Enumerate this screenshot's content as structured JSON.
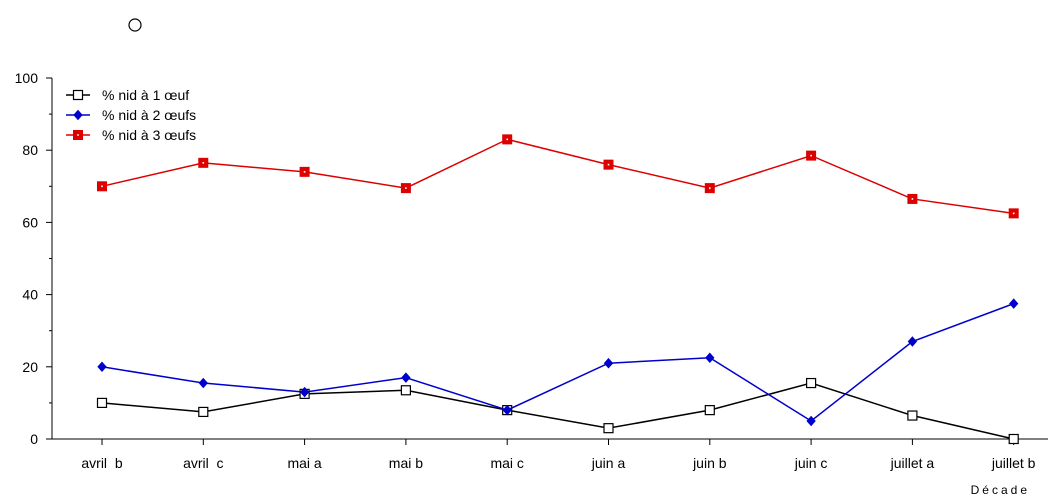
{
  "chart_data": {
    "type": "line",
    "title": "",
    "xlabel": "Décade",
    "ylabel": "",
    "ylim": [
      0,
      100
    ],
    "yticks": [
      0,
      20,
      40,
      60,
      80,
      100
    ],
    "grid": false,
    "legend_position": "top-left",
    "categories": [
      "avril  b",
      "avril  c",
      "mai a",
      "mai b",
      "mai c",
      "juin a",
      "juin b",
      "juin c",
      "juillet a",
      "juillet b"
    ],
    "series": [
      {
        "name": "% nid à 1 œuf",
        "color": "#000000",
        "marker": "open-square",
        "values": [
          10,
          7.5,
          12.5,
          13.5,
          8,
          3,
          8,
          15.5,
          6.5,
          0
        ]
      },
      {
        "name": "% nid à 2 œufs",
        "color": "#0000cc",
        "marker": "diamond",
        "values": [
          20,
          15.5,
          13,
          17,
          8,
          21,
          22.5,
          5,
          27,
          37.5
        ]
      },
      {
        "name": "% nid à 3 œufs",
        "color": "#dd0000",
        "marker": "filled-square",
        "values": [
          70,
          76.5,
          74,
          69.5,
          83,
          76,
          69.5,
          78.5,
          66.5,
          62.5
        ]
      }
    ]
  }
}
